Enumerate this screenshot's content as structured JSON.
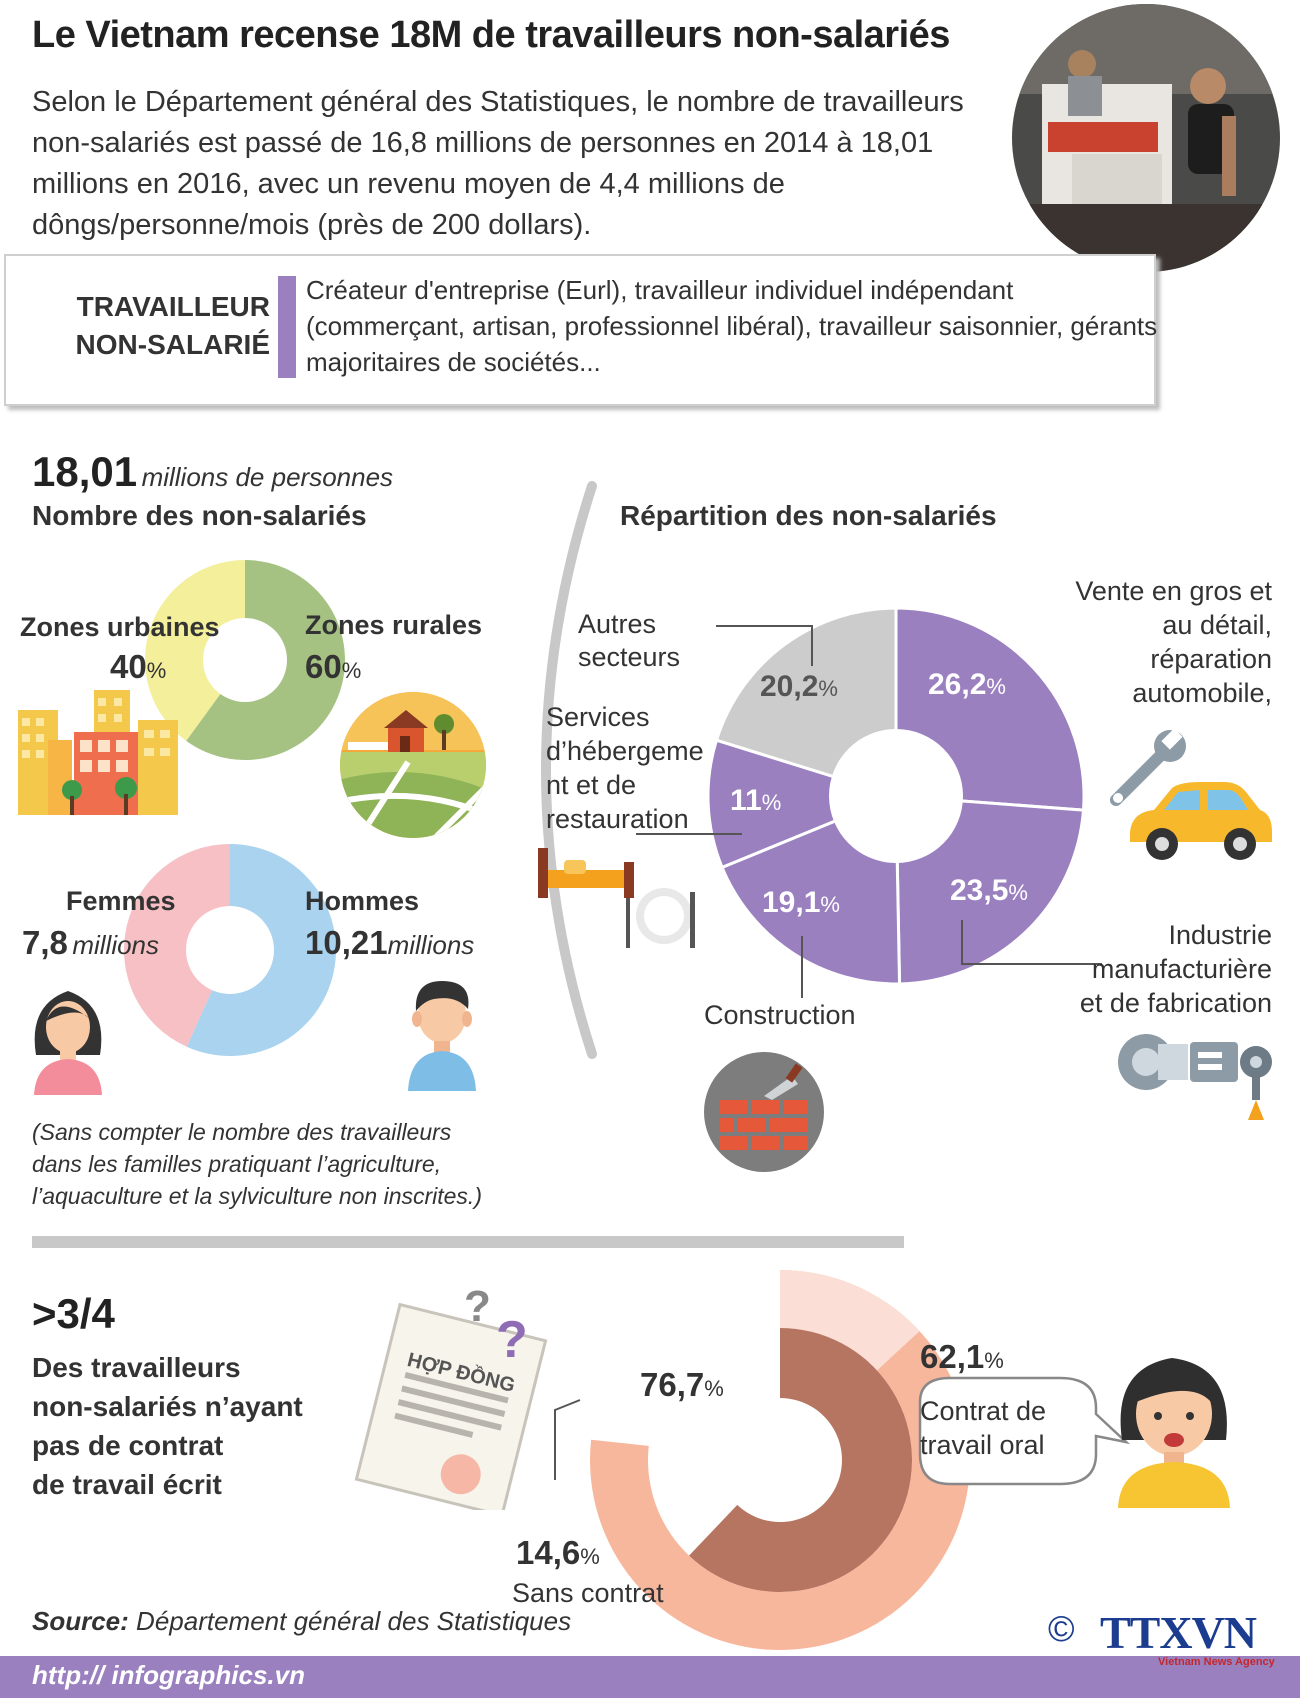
{
  "header": {
    "title": "Le Vietnam recense 18M de travailleurs non-salariés",
    "intro": "Selon le Département général des Statistiques, le nombre de travailleurs non-salariés est passé de 16,8 millions de personnes en 2014 à 18,01 millions en 2016, avec un revenu moyen de 4,4 millions de dôngs/personne/mois (près de 200 dollars)."
  },
  "definition": {
    "term_line1": "TRAVAILLEUR",
    "term_line2": "NON-SALARIÉ",
    "text": "Créateur d'entreprise (Eurl), travailleur individuel indépendant (commerçant, artisan, professionnel libéral), travailleur saisonnier, gérants majoritaires de sociétés..."
  },
  "count": {
    "number": "18,01",
    "unit": "millions de personnes",
    "heading": "Nombre des non-salariés"
  },
  "zones": {
    "urban_label": "Zones urbaines",
    "urban_pct": "40",
    "rural_label": "Zones rurales",
    "rural_pct": "60"
  },
  "gender": {
    "women_label": "Femmes",
    "women_value": "7,8",
    "women_unit": "millions",
    "men_label": "Hommes",
    "men_value": "10,21",
    "men_unit": "millions"
  },
  "note": "(Sans compter le nombre des travailleurs dans les familles pratiquant l’agriculture, l’aquaculture et la sylviculture non inscrites.)",
  "distribution": {
    "heading": "Répartition des non-salariés",
    "others_line1": "Autres",
    "others_line2": "secteurs",
    "hosp_line1": "Services",
    "hosp_line2": "d’hébergeme",
    "hosp_line3": "nt et de",
    "hosp_line4": "restauration",
    "sales_line1": "Vente en gros et",
    "sales_line2": "au détail,",
    "sales_line3": "réparation",
    "sales_line4": "automobile,",
    "construction": "Construction",
    "ind_line1": "Industrie",
    "ind_line2": "manufacturière",
    "ind_line3": "et de fabrication",
    "percent_sign": "%"
  },
  "contract": {
    "big": ">3/4",
    "line1": "Des travailleurs",
    "line2": "non-salariés n’ayant",
    "line3": "pas de contrat",
    "line4": "de travail écrit",
    "contract_word1": "HỢP ĐỒNG",
    "qmarks": "?",
    "oral_line1": "Contrat de",
    "oral_line2": "travail oral",
    "none_label": "Sans contrat"
  },
  "source": {
    "label": "Source:",
    "text": "Département général des Statistiques"
  },
  "footer": {
    "url": "http:// infographics.vn",
    "copyright": "©",
    "brand": "TTXVN",
    "brand_sub": "Vietnam News Agency"
  },
  "colors": {
    "purple": "#9b80c0",
    "yellow": "#f3ef9a",
    "green": "#a6c283",
    "pink": "#f6c0c4",
    "blue": "#a9d3ee",
    "grey": "#cccccc",
    "salmon": "#f7b79c",
    "brown": "#b57560",
    "lightpink": "#fbded6"
  },
  "chart_data": [
    {
      "type": "pie",
      "title": "",
      "categories": [
        "Zones urbaines",
        "Zones rurales"
      ],
      "values": [
        40,
        60
      ],
      "colors": [
        "#f3ef9a",
        "#a6c283"
      ]
    },
    {
      "type": "pie",
      "title": "",
      "categories": [
        "Femmes",
        "Hommes"
      ],
      "values": [
        7.8,
        10.21
      ],
      "colors": [
        "#f6c0c4",
        "#a9d3ee"
      ]
    },
    {
      "type": "pie",
      "title": "Répartition des non-salariés",
      "categories": [
        "Vente en gros et au détail, réparation automobile,",
        "Industrie manufacturière et de fabrication",
        "Construction",
        "Services d’hébergement et de restauration",
        "Autres secteurs"
      ],
      "values": [
        26.2,
        23.5,
        19.1,
        11,
        20.2
      ],
      "labels": [
        "26,2",
        "23,5",
        "19,1",
        "11",
        "20,2"
      ],
      "colors": [
        "#9b80c0",
        "#9b80c0",
        "#9b80c0",
        "#9b80c0",
        "#cccccc"
      ]
    },
    {
      "type": "pie",
      "title": "",
      "categories": [
        "Contrat de travail oral",
        "Sans contrat"
      ],
      "values": [
        62.1,
        14.6
      ],
      "total": 76.7,
      "labels": [
        "62,1",
        "14,6",
        "76,7"
      ]
    }
  ]
}
